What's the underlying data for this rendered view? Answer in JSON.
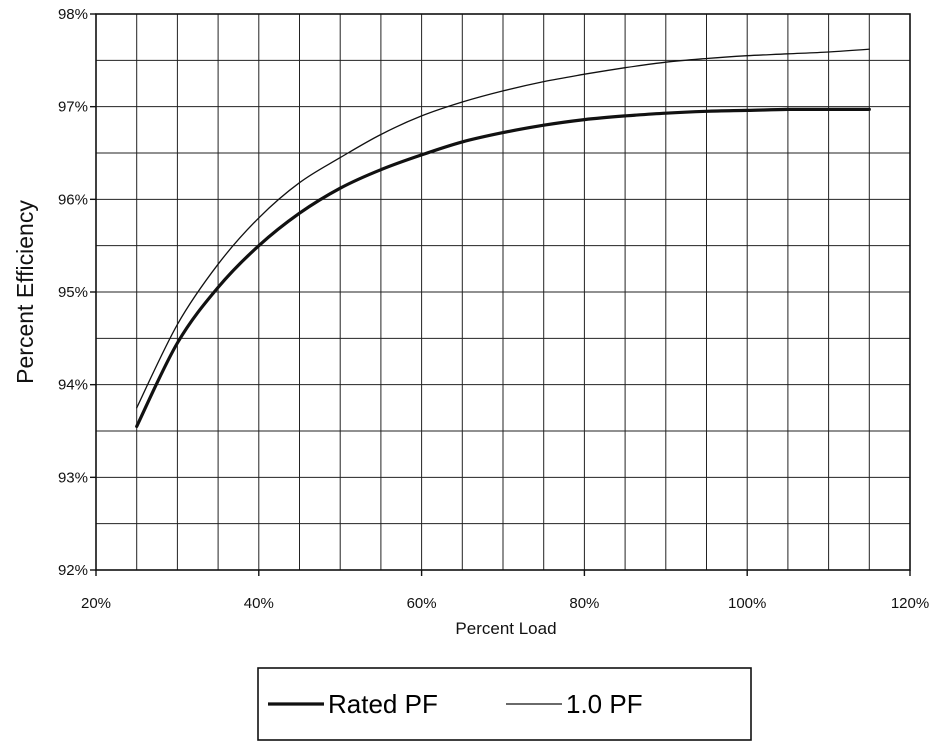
{
  "chart_data": {
    "type": "line",
    "xlabel": "Percent Load",
    "ylabel": "Percent Efficiency",
    "xlim": [
      20,
      120
    ],
    "ylim": [
      92,
      98
    ],
    "x_ticks": [
      "20%",
      "40%",
      "60%",
      "80%",
      "100%",
      "120%"
    ],
    "y_ticks": [
      "92%",
      "93%",
      "94%",
      "95%",
      "96%",
      "97%",
      "98%"
    ],
    "grid": true,
    "legend_position": "bottom",
    "series": [
      {
        "name": "Rated PF",
        "color": "#111111",
        "style": "thick",
        "x": [
          25,
          30,
          35,
          40,
          45,
          50,
          55,
          60,
          65,
          70,
          75,
          80,
          85,
          90,
          95,
          100,
          105,
          110,
          115
        ],
        "y": [
          93.55,
          94.45,
          95.05,
          95.5,
          95.85,
          96.12,
          96.32,
          96.48,
          96.62,
          96.72,
          96.8,
          96.86,
          96.9,
          96.93,
          96.95,
          96.96,
          96.97,
          96.97,
          96.97
        ]
      },
      {
        "name": "1.0 PF",
        "color": "#111111",
        "style": "thin",
        "x": [
          25,
          30,
          35,
          40,
          45,
          50,
          55,
          60,
          65,
          70,
          75,
          80,
          85,
          90,
          95,
          100,
          105,
          110,
          115
        ],
        "y": [
          93.75,
          94.65,
          95.3,
          95.8,
          96.18,
          96.45,
          96.7,
          96.9,
          97.05,
          97.17,
          97.27,
          97.35,
          97.42,
          97.48,
          97.52,
          97.55,
          97.57,
          97.59,
          97.62
        ]
      }
    ]
  }
}
